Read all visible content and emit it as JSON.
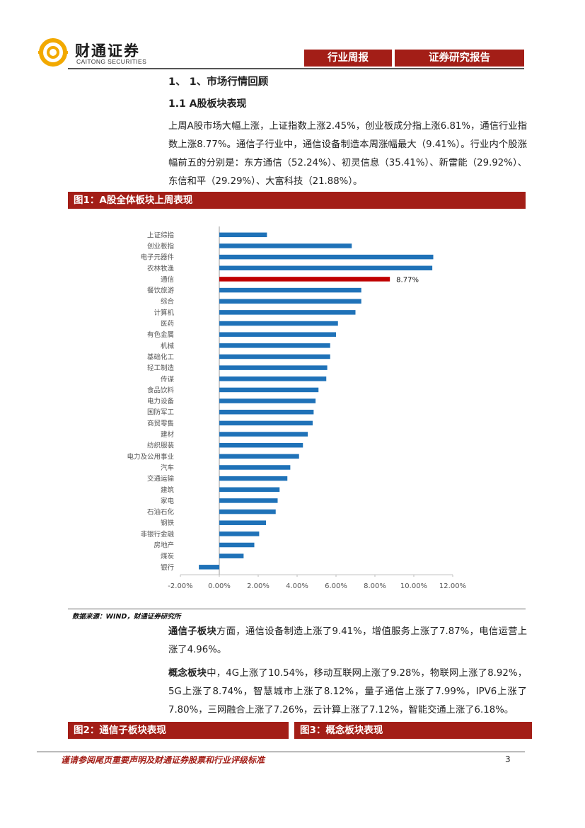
{
  "header": {
    "logo_cn": "财通证券",
    "logo_en": "CAITONG SECURITIES",
    "tag_week": "行业周报",
    "tag_report": "证券研究报告"
  },
  "section": {
    "h1": "1、 1、市场行情回顾",
    "h2": "1.1  A股板块表现"
  },
  "para1": "上周A股市场大幅上涨，上证指数上涨2.45%，创业板成分指上涨6.81%，通信行业指数上涨8.77%。通信子行业中，通信设备制造本周涨幅最大（9.41%）。行业内个股涨幅前五的分别是：东方通信（52.24%）、初灵信息（35.41%）、新雷能（29.92%）、东信和平（29.29%）、大富科技（21.88%）。",
  "figure1": {
    "title": "图1：A股全体板块上周表现"
  },
  "source": "数据来源：WIND，财通证券研究所",
  "para2": {
    "lead": "通信子板块",
    "rest": "方面，通信设备制造上涨了9.41%，增值服务上涨了7.87%，电信运营上涨了4.96%。"
  },
  "para3": {
    "lead": "概念板块",
    "rest": "中，4G上涨了10.54%，移动互联网上涨了9.28%，物联网上涨了8.92%，5G上涨了8.74%，智慧城市上涨了8.12%，量子通信上涨了7.99%，IPV6上涨了7.80%，三网融合上涨了7.26%，云计算上涨了7.12%，智能交通上涨了6.18%。"
  },
  "figure2": {
    "title": "图2：通信子板块表现"
  },
  "figure3": {
    "title": "图3：概念板块表现"
  },
  "footer": {
    "disclaimer": "谨请参阅尾页重要声明及财通证券股票和行业评级标准",
    "page": "3"
  },
  "colors": {
    "brand": "#a31e17",
    "bar": "#1f72b8",
    "highlight": "#c00000",
    "logo": "#f2a900"
  },
  "chart_data": {
    "type": "bar",
    "orientation": "horizontal",
    "categories": [
      "上证综指",
      "创业板指",
      "电子元器件",
      "农林牧渔",
      "通信",
      "餐饮旅游",
      "综合",
      "计算机",
      "医药",
      "有色金属",
      "机械",
      "基础化工",
      "轻工制造",
      "传谋",
      "食品饮料",
      "电力设备",
      "国防军工",
      "商贸零售",
      "建材",
      "纺织服装",
      "电力及公用事业",
      "汽车",
      "交通运输",
      "建筑",
      "家电",
      "石油石化",
      "钢铁",
      "非银行金融",
      "房地产",
      "煤炭",
      "银行"
    ],
    "values": [
      2.45,
      6.81,
      11.0,
      10.95,
      8.77,
      7.3,
      7.3,
      7.0,
      6.1,
      6.0,
      5.7,
      5.7,
      5.55,
      5.5,
      5.1,
      4.95,
      4.85,
      4.8,
      4.55,
      4.3,
      4.1,
      3.65,
      3.5,
      3.1,
      3.0,
      2.9,
      2.4,
      2.05,
      1.8,
      1.25,
      -1.05
    ],
    "highlight_index": 4,
    "highlight_label": "8.77%",
    "xlim": [
      -2,
      12
    ],
    "xticks": [
      -2,
      0,
      2,
      4,
      6,
      8,
      10,
      12
    ],
    "xtick_labels": [
      "-2.00%",
      "0.00%",
      "2.00%",
      "4.00%",
      "6.00%",
      "8.00%",
      "10.00%",
      "12.00%"
    ],
    "grid": false,
    "title": "",
    "xlabel": "",
    "ylabel": ""
  }
}
